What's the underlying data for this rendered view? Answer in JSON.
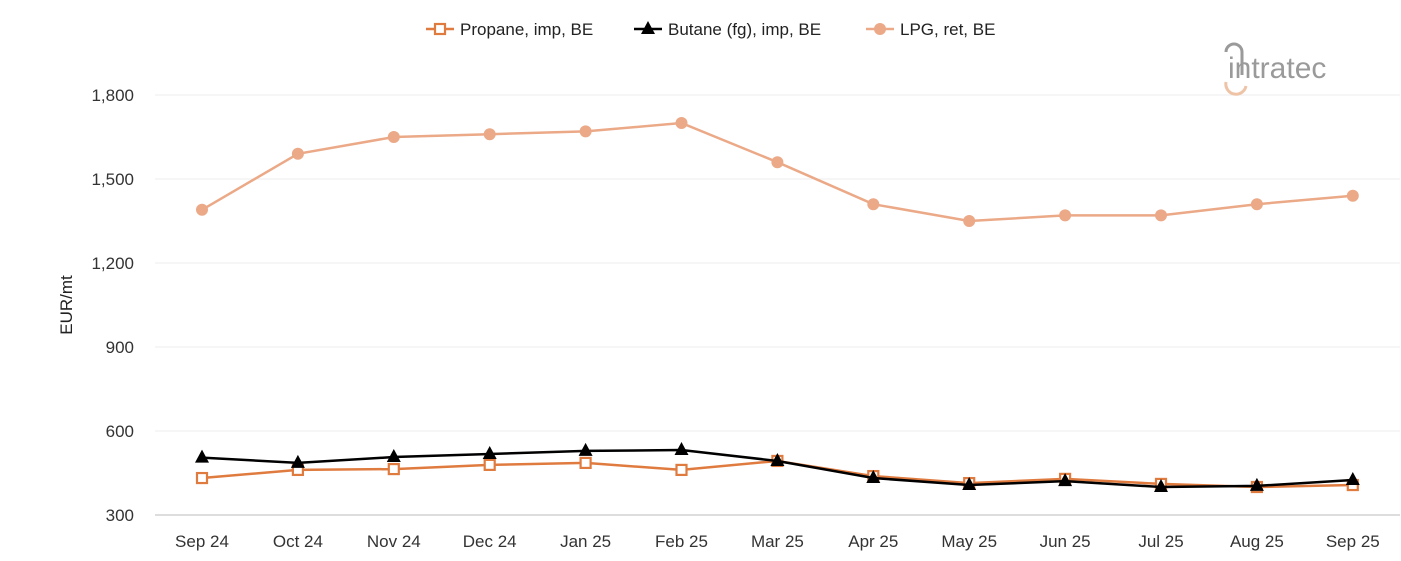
{
  "chart_data": {
    "type": "line",
    "title": "",
    "xlabel": "",
    "ylabel": "EUR/mt",
    "ylim": [
      300,
      1800
    ],
    "yticks": [
      "300",
      "600",
      "900",
      "1,200",
      "1,500",
      "1,800"
    ],
    "ytick_values": [
      300,
      600,
      900,
      1200,
      1500,
      1800
    ],
    "grid": "horizontal",
    "legend_position": "top",
    "categories": [
      "Sep 24",
      "Oct 24",
      "Nov 24",
      "Dec 24",
      "Jan 25",
      "Feb 25",
      "Mar 25",
      "Apr 25",
      "May 25",
      "Jun 25",
      "Jul 25",
      "Aug 25",
      "Sep 25"
    ],
    "series": [
      {
        "name": "Propane, imp, BE",
        "color": "#e07b3f",
        "marker": "hollow-square",
        "values": [
          432,
          461,
          464,
          479,
          486,
          461,
          493,
          439,
          414,
          429,
          411,
          400,
          407
        ]
      },
      {
        "name": "Butane (fg), imp, BE",
        "color": "#000000",
        "marker": "filled-triangle",
        "values": [
          505,
          486,
          507,
          518,
          529,
          532,
          493,
          432,
          407,
          421,
          400,
          404,
          425
        ]
      },
      {
        "name": "LPG, ret, BE",
        "color": "#eba987",
        "marker": "filled-circle",
        "values": [
          1390,
          1590,
          1650,
          1660,
          1670,
          1700,
          1560,
          1410,
          1350,
          1370,
          1370,
          1410,
          1440
        ]
      }
    ]
  },
  "logo": {
    "text": "intratec"
  }
}
